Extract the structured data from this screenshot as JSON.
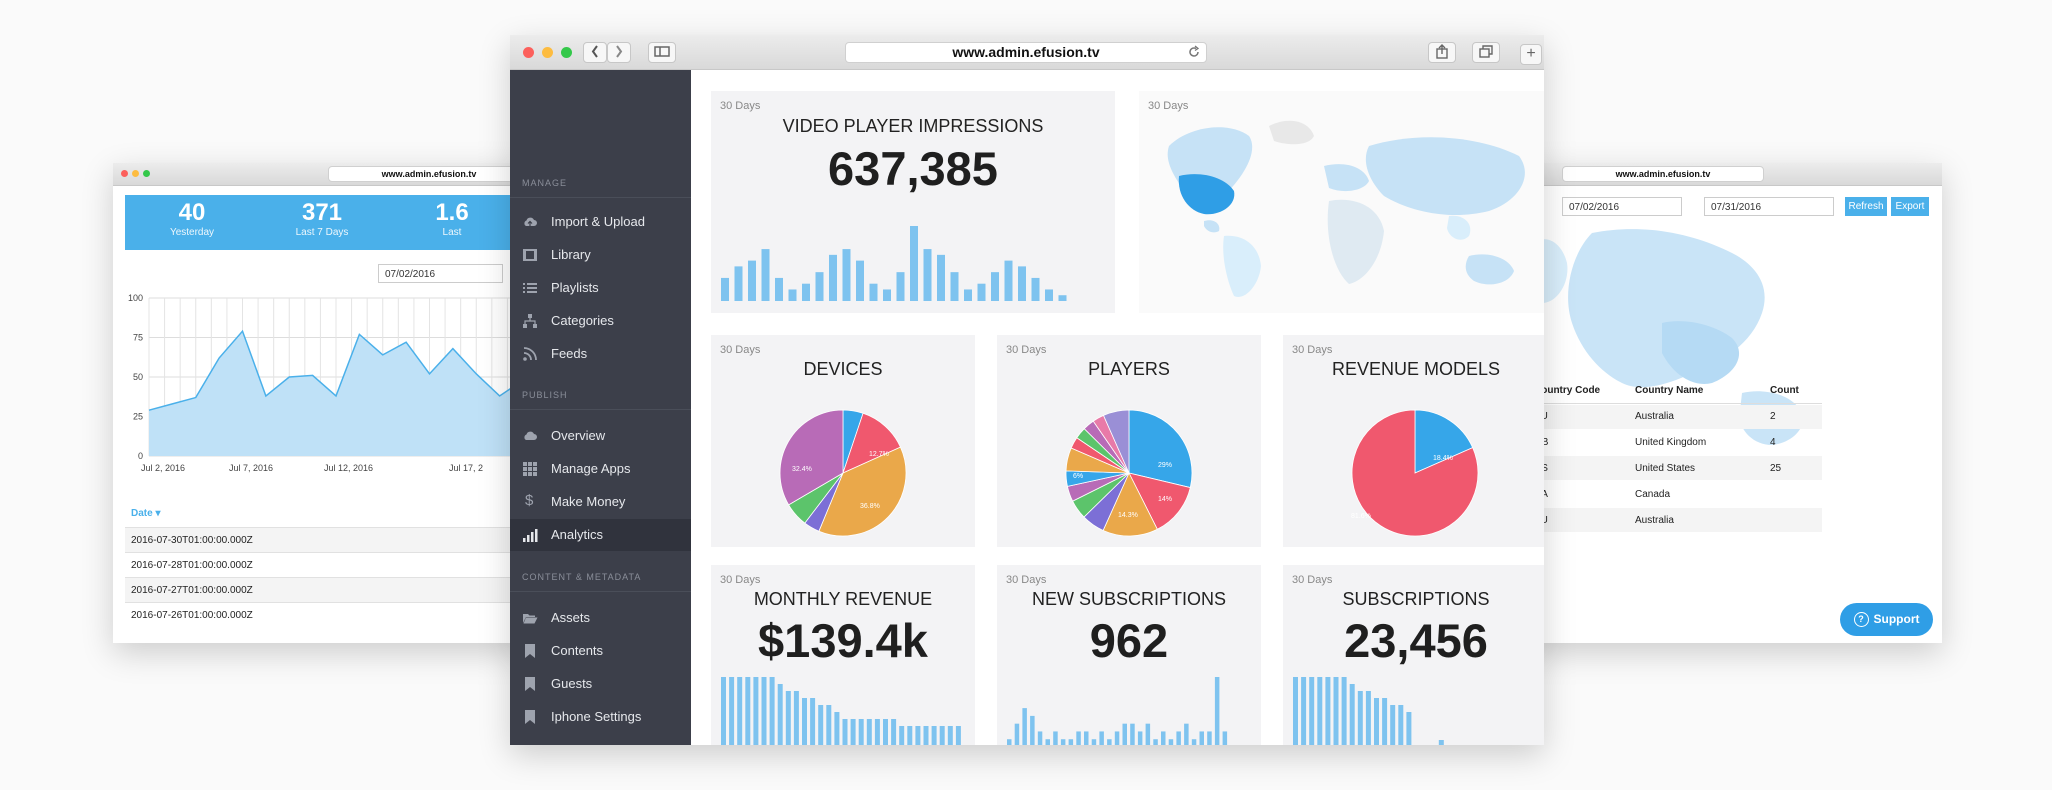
{
  "main_window": {
    "url": "www.admin.efusion.tv",
    "sidebar": {
      "sections": [
        {
          "label": "MANAGE",
          "items": [
            "Import & Upload",
            "Library",
            "Playlists",
            "Categories",
            "Feeds"
          ]
        },
        {
          "label": "PUBLISH",
          "items": [
            "Overview",
            "Manage Apps",
            "Make Money",
            "Analytics"
          ]
        },
        {
          "label": "CONTENT & METADATA",
          "items": [
            "Assets",
            "Contents",
            "Guests",
            "Iphone Settings"
          ]
        }
      ],
      "active_item": "Analytics"
    },
    "cards": {
      "impressions": {
        "caption": "30 Days",
        "title": "VIDEO PLAYER IMPRESSIONS",
        "value": "637,385"
      },
      "world_map": {
        "caption": "30 Days"
      },
      "devices": {
        "caption": "30 Days",
        "title": "DEVICES",
        "slice_labels": [
          "12.7%",
          "36.8%",
          "32.4%"
        ]
      },
      "players": {
        "caption": "30 Days",
        "title": "PLAYERS",
        "slice_labels": [
          "29%",
          "14%",
          "14.3%",
          "6%"
        ]
      },
      "revenue_models": {
        "caption": "30 Days",
        "title": "REVENUE MODELS",
        "slice_labels": [
          "18.4%",
          "81.6%"
        ]
      },
      "monthly_revenue": {
        "caption": "30 Days",
        "title": "MONTHLY REVENUE",
        "value": "$139.4k"
      },
      "new_subscriptions": {
        "caption": "30 Days",
        "title": "NEW SUBSCRIPTIONS",
        "value": "962"
      },
      "subscriptions": {
        "caption": "30 Days",
        "title": "SUBSCRIPTIONS",
        "value": "23,456"
      }
    }
  },
  "left_window": {
    "url": "www.admin.efusion.tv",
    "kpis": [
      {
        "value": "40",
        "label": "Yesterday"
      },
      {
        "value": "371",
        "label": "Last 7 Days"
      },
      {
        "value": "1.6",
        "label": "Last"
      }
    ],
    "date_input": "07/02/2016",
    "table_header": "Date",
    "rows": [
      "2016-07-30T01:00:00.000Z",
      "2016-07-28T01:00:00.000Z",
      "2016-07-27T01:00:00.000Z",
      "2016-07-26T01:00:00.000Z"
    ]
  },
  "right_window": {
    "url": "www.admin.efusion.tv",
    "date_from": "07/02/2016",
    "date_to": "07/31/2016",
    "refresh_label": "Refresh",
    "export_label": "Export",
    "table": {
      "headers": [
        "Country Code",
        "Country Name",
        "Count"
      ],
      "rows": [
        [
          "AU",
          "Australia",
          "2"
        ],
        [
          "GB",
          "United Kingdom",
          "4"
        ],
        [
          "US",
          "United States",
          "25"
        ],
        [
          "CA",
          "Canada",
          ""
        ],
        [
          "AU",
          "Australia",
          ""
        ]
      ]
    }
  },
  "support_label": "Support",
  "colors": {
    "accent": "#4ab0ea",
    "sidebar": "#3c3f4a",
    "pie_red": "#f0586e",
    "pie_orange": "#eaa84a",
    "pie_purple": "#b86bb7",
    "pie_green": "#5cc46b",
    "pie_blue": "#36a6e9"
  },
  "chart_data": [
    {
      "type": "bar",
      "name_ref": "impressions",
      "values": [
        4,
        6,
        7,
        9,
        4,
        2,
        3,
        5,
        8,
        9,
        7,
        3,
        2,
        5,
        13,
        9,
        8,
        5,
        2,
        3,
        5,
        7,
        6,
        4,
        2,
        1
      ]
    },
    {
      "type": "pie",
      "title": "DEVICES",
      "values": [
        5,
        12.7,
        36.8,
        4,
        6,
        32.4
      ],
      "colors": [
        "#36a6e9",
        "#f0586e",
        "#eaa84a",
        "#7c6fd6",
        "#5cc46b",
        "#b86bb7"
      ]
    },
    {
      "type": "pie",
      "title": "PLAYERS",
      "values": [
        29,
        14,
        14.3,
        6,
        5,
        4,
        4,
        6,
        3,
        3,
        3,
        3,
        6.7
      ],
      "colors": [
        "#36a6e9",
        "#f0586e",
        "#eaa84a",
        "#7c6fd6",
        "#5cc46b",
        "#b86bb7",
        "#36a6e9",
        "#eaa84a",
        "#f0586e",
        "#5cc46b",
        "#b86bb7",
        "#e87aa8",
        "#9a8fd6"
      ]
    },
    {
      "type": "pie",
      "title": "REVENUE MODELS",
      "values": [
        18.4,
        81.6
      ],
      "colors": [
        "#36a6e9",
        "#f0586e"
      ]
    },
    {
      "type": "bar",
      "name_ref": "monthly_revenue",
      "values": [
        10,
        10,
        10,
        10,
        10,
        10,
        10,
        9,
        8,
        8,
        7,
        7,
        6,
        6,
        5,
        4,
        4,
        4,
        4,
        4,
        4,
        4,
        3,
        3,
        3,
        3,
        3,
        3,
        3,
        3
      ]
    },
    {
      "type": "bar",
      "name_ref": "new_subscriptions",
      "values": [
        1,
        3,
        5,
        4,
        2,
        1,
        2,
        1,
        1,
        2,
        2,
        1,
        2,
        1,
        2,
        3,
        3,
        2,
        3,
        1,
        2,
        1,
        2,
        3,
        1,
        2,
        2,
        9,
        2
      ]
    },
    {
      "type": "bar",
      "name_ref": "subscriptions",
      "values": [
        10,
        10,
        10,
        10,
        10,
        10,
        10,
        9,
        8,
        8,
        7,
        7,
        6,
        6,
        5,
        0,
        0,
        0,
        1,
        0,
        0
      ]
    },
    {
      "type": "area",
      "name_ref": "left_window",
      "x_ticks": [
        "Jul 2, 2016",
        "Jul 7, 2016",
        "Jul 12, 2016",
        "Jul 17, 2"
      ],
      "y_ticks": [
        0,
        25,
        50,
        75,
        100
      ],
      "ylim": [
        0,
        100
      ],
      "values": [
        29,
        33,
        37,
        62,
        79,
        38,
        50,
        51,
        38,
        77,
        64,
        72,
        52,
        68,
        52,
        38,
        48
      ]
    }
  ]
}
